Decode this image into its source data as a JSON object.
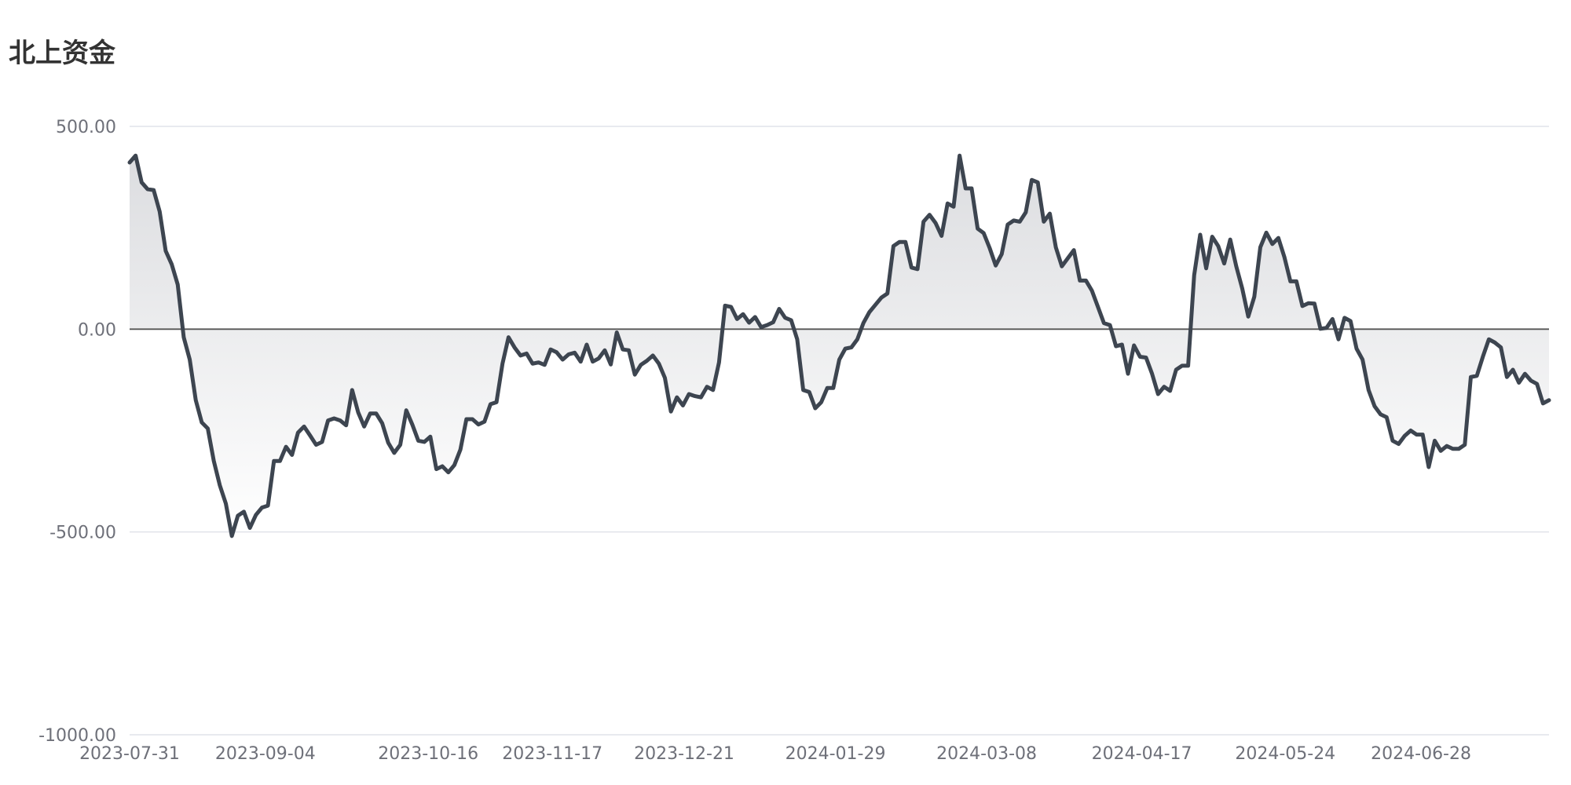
{
  "chart_data": {
    "type": "area",
    "title": "北上资金",
    "xlabel": "",
    "ylabel": "",
    "ylim": [
      -1000,
      500
    ],
    "y_ticks": [
      "500.00",
      "0.00",
      "-500.00",
      "-1000.00"
    ],
    "y_tick_values": [
      500,
      0,
      -500,
      -1000
    ],
    "x_start": "2023-07-31",
    "x_end": "2024-07-31",
    "x_tick_labels": [
      "2023-07-31",
      "2023-09-04",
      "2023-10-16",
      "2023-11-17",
      "2023-12-21",
      "2024-01-29",
      "2024-03-08",
      "2024-04-17",
      "2024-05-24",
      "2024-06-28"
    ],
    "grid": true,
    "zero_line": true,
    "colors": {
      "line": "#3d4550",
      "area_top": "#dcdde0",
      "area_bottom": "#ffffff",
      "grid": "#e0e3ea",
      "zero_line": "#555555",
      "tick_text": "#6e7079",
      "title": "#333333"
    },
    "series": [
      {
        "values": [
          411,
          428,
          362,
          345,
          343,
          290,
          193,
          160,
          110,
          -20,
          -75,
          -175,
          -230,
          -245,
          -325,
          -385,
          -430,
          -510,
          -460,
          -450,
          -490,
          -458,
          -440,
          -435,
          -325,
          -325,
          -290,
          -310,
          -255,
          -240,
          -262,
          -285,
          -278,
          -225,
          -220,
          -225,
          -237,
          -150,
          -205,
          -240,
          -208,
          -208,
          -232,
          -280,
          -305,
          -285,
          -200,
          -235,
          -275,
          -278,
          -265,
          -345,
          -338,
          -353,
          -335,
          -297,
          -222,
          -222,
          -235,
          -228,
          -185,
          -180,
          -85,
          -20,
          -45,
          -65,
          -60,
          -85,
          -82,
          -88,
          -50,
          -57,
          -75,
          -62,
          -58,
          -80,
          -38,
          -80,
          -72,
          -52,
          -87,
          -8,
          -50,
          -52,
          -112,
          -88,
          -78,
          -65,
          -85,
          -120,
          -203,
          -168,
          -188,
          -160,
          -165,
          -168,
          -142,
          -150,
          -82,
          58,
          55,
          25,
          37,
          16,
          30,
          5,
          10,
          17,
          50,
          28,
          22,
          -25,
          -150,
          -155,
          -195,
          -180,
          -145,
          -145,
          -75,
          -48,
          -45,
          -25,
          15,
          42,
          60,
          78,
          88,
          205,
          215,
          215,
          152,
          148,
          265,
          282,
          262,
          230,
          310,
          302,
          428,
          347,
          347,
          248,
          237,
          200,
          157,
          185,
          258,
          268,
          265,
          288,
          368,
          362,
          265,
          285,
          202,
          155,
          175,
          195,
          120,
          120,
          95,
          55,
          15,
          10,
          -42,
          -38,
          -110,
          -40,
          -68,
          -70,
          -110,
          -160,
          -142,
          -152,
          -100,
          -90,
          -90,
          133,
          233,
          150,
          228,
          205,
          162,
          221,
          155,
          100,
          31,
          80,
          202,
          238,
          210,
          225,
          178,
          118,
          118,
          57,
          64,
          63,
          1,
          3,
          25,
          -25,
          28,
          20,
          -48,
          -75,
          -150,
          -190,
          -210,
          -217,
          -275,
          -283,
          -263,
          -250,
          -260,
          -260,
          -340,
          -275,
          -300,
          -288,
          -295,
          -295,
          -285,
          -118,
          -115,
          -68,
          -25,
          -33,
          -45,
          -118,
          -100,
          -132,
          -110,
          -127,
          -135,
          -183,
          -175
        ]
      }
    ]
  }
}
